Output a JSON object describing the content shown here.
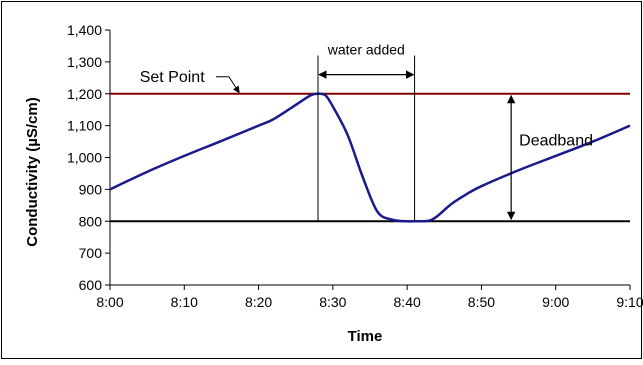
{
  "chart_data": {
    "type": "line",
    "title": "",
    "xlabel": "Time",
    "ylabel": "Conductivity (µS/cm)",
    "x_ticks": [
      "8:00",
      "8:10",
      "8:20",
      "8:30",
      "8:40",
      "8:50",
      "9:00",
      "9:10"
    ],
    "y_ticks": [
      "600",
      "700",
      "800",
      "900",
      "1,000",
      "1,100",
      "1,200",
      "1,300",
      "1,400"
    ],
    "xlim": [
      "8:00",
      "9:10"
    ],
    "ylim": [
      600,
      1400
    ],
    "grid": false,
    "series": [
      {
        "color": "#1a1a8c",
        "x": [
          "8:00",
          "8:05",
          "8:10",
          "8:15",
          "8:20",
          "8:22",
          "8:25",
          "8:27",
          "8:28",
          "8:29",
          "8:30",
          "8:32",
          "8:34",
          "8:36",
          "8:38",
          "8:40",
          "8:41",
          "8:42",
          "8:43",
          "8:44",
          "8:46",
          "8:48",
          "8:50",
          "8:55",
          "9:00",
          "9:05",
          "9:10"
        ],
        "y": [
          900,
          955,
          1005,
          1052,
          1100,
          1120,
          1165,
          1195,
          1200,
          1195,
          1160,
          1070,
          940,
          830,
          805,
          800,
          800,
          800,
          802,
          815,
          855,
          885,
          910,
          960,
          1005,
          1050,
          1100
        ]
      }
    ],
    "reference_lines": [
      {
        "y": 1200,
        "label": "Set Point",
        "color": "#800000"
      },
      {
        "y": 800,
        "label": "",
        "color": "#000000"
      }
    ],
    "annotations": {
      "water_added": {
        "label": "water added",
        "x_start": "8:28",
        "x_end": "8:41"
      },
      "deadband": {
        "label": "Deadband",
        "x": "8:54",
        "y_from": 800,
        "y_to": 1200
      }
    }
  }
}
